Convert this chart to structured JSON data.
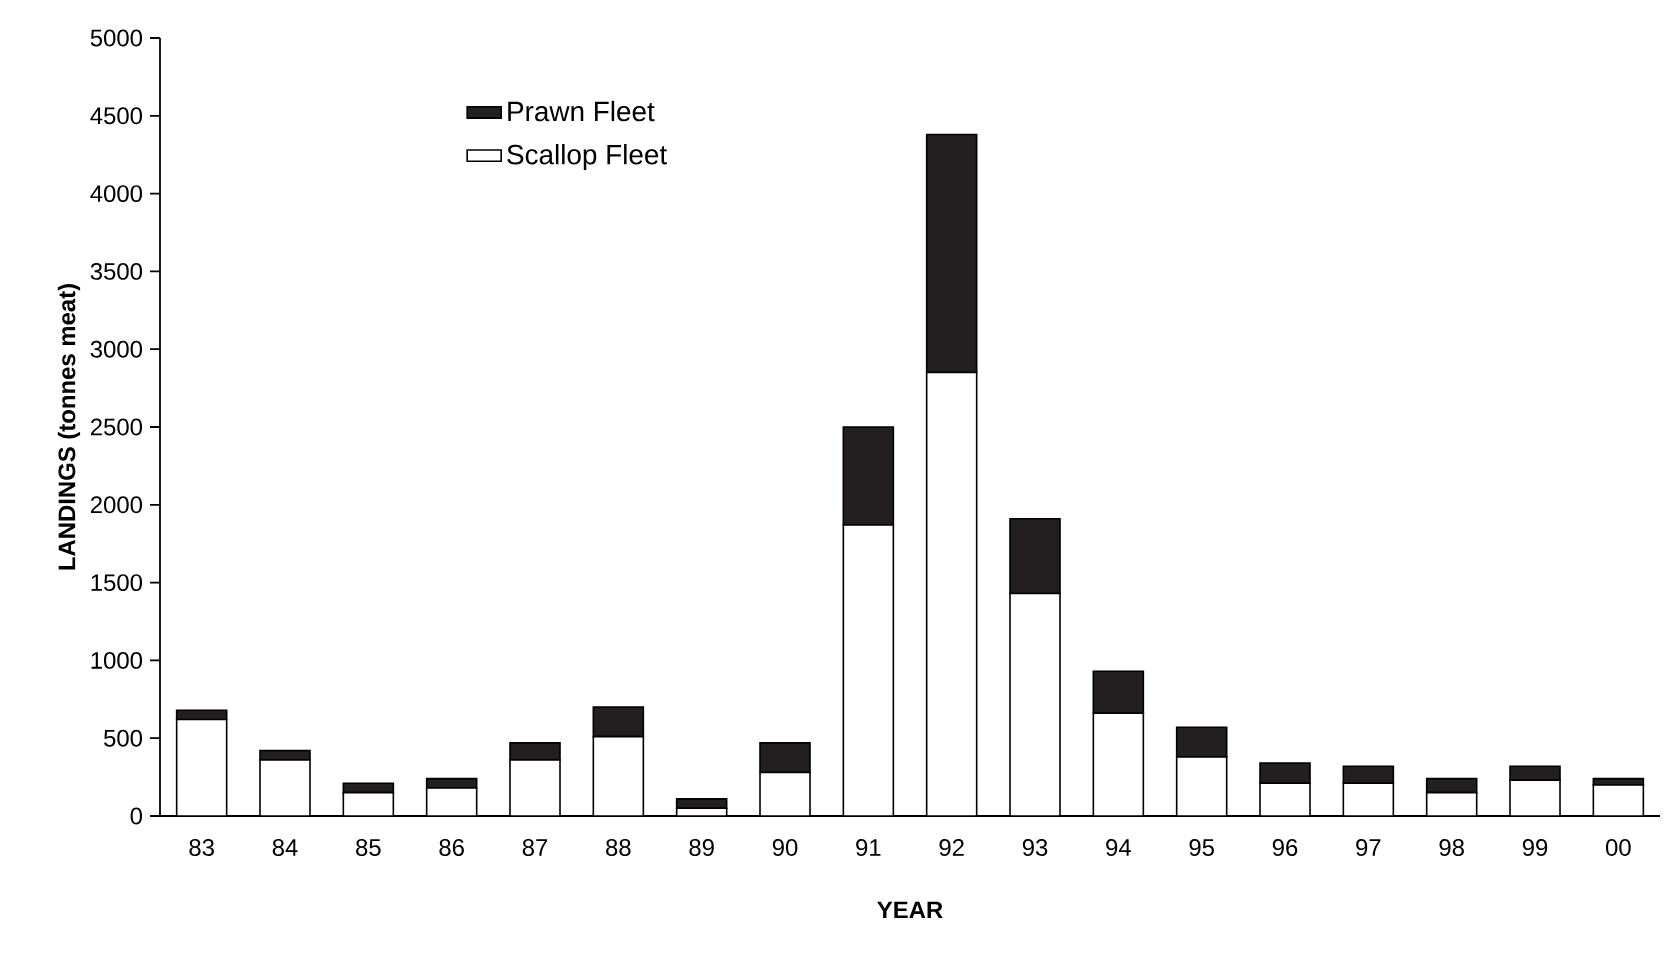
{
  "chart_data": {
    "type": "bar",
    "stacked": true,
    "xlabel": "YEAR",
    "ylabel": "LANDINGS (tonnes meat)",
    "categories": [
      "83",
      "84",
      "85",
      "86",
      "87",
      "88",
      "89",
      "90",
      "91",
      "92",
      "93",
      "94",
      "95",
      "96",
      "97",
      "98",
      "99",
      "00"
    ],
    "series": [
      {
        "name": "Scallop Fleet",
        "color": "#ffffff",
        "values": [
          620,
          360,
          150,
          180,
          360,
          510,
          50,
          280,
          1870,
          2850,
          1430,
          660,
          380,
          210,
          210,
          150,
          230,
          200
        ]
      },
      {
        "name": "Prawn Fleet",
        "color": "#231f20",
        "values": [
          60,
          60,
          60,
          60,
          110,
          190,
          60,
          190,
          630,
          1530,
          480,
          270,
          190,
          130,
          110,
          90,
          90,
          40
        ]
      }
    ],
    "ylim": [
      0,
      5000
    ],
    "yticks": [
      0,
      500,
      1000,
      1500,
      2000,
      2500,
      3000,
      3500,
      4000,
      4500,
      5000
    ],
    "legend": "top left",
    "grid": false
  }
}
